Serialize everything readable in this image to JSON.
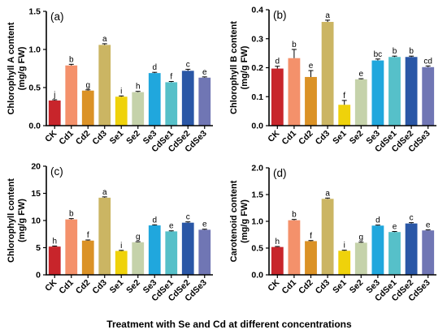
{
  "figure": {
    "xlabel": "Treatment with Se and Cd at different concentrations"
  },
  "colors": [
    "#c8252b",
    "#f4916b",
    "#db9226",
    "#cbb563",
    "#efd20b",
    "#c5d2aa",
    "#20a7dd",
    "#56c0c9",
    "#2a57a6",
    "#7076b4"
  ],
  "chart_data": [
    {
      "type": "bar",
      "panel": "(a)",
      "ylabel": [
        "Chlorophyll A content",
        "(mg/g FW)"
      ],
      "categories": [
        "CK",
        "Cd1",
        "Cd2",
        "Cd3",
        "Se1",
        "Se2",
        "Se3",
        "CdSe1",
        "CdSe2",
        "CdSe3"
      ],
      "values": [
        0.33,
        0.79,
        0.46,
        1.06,
        0.38,
        0.44,
        0.69,
        0.57,
        0.72,
        0.63
      ],
      "errors": [
        0.01,
        0.015,
        0.01,
        0.015,
        0.01,
        0.01,
        0.01,
        0.01,
        0.02,
        0.01
      ],
      "letters": [
        "j",
        "b",
        "g",
        "a",
        "i",
        "h",
        "d",
        "f",
        "c",
        "e"
      ],
      "ylim": [
        0,
        1.5
      ],
      "yticks": [
        "0.0",
        "0.5",
        "1.0",
        "1.5"
      ],
      "grid": false
    },
    {
      "type": "bar",
      "panel": "(b)",
      "ylabel": [
        "Chlorophyll B content",
        "(mg/g FW)"
      ],
      "categories": [
        "CK",
        "Cd1",
        "Cd2",
        "Cd3",
        "Se1",
        "Se2",
        "Se3",
        "CdSe1",
        "CdSe2",
        "CdSe3"
      ],
      "values": [
        0.197,
        0.233,
        0.168,
        0.358,
        0.072,
        0.16,
        0.225,
        0.237,
        0.237,
        0.202
      ],
      "errors": [
        0.008,
        0.03,
        0.022,
        0.006,
        0.015,
        0.002,
        0.005,
        0.003,
        0.003,
        0.004
      ],
      "letters": [
        "d",
        "b",
        "e",
        "a",
        "f",
        "e",
        "bc",
        "b",
        "b",
        "cd"
      ],
      "ylim": [
        0,
        0.4
      ],
      "yticks": [
        "0.0",
        "0.1",
        "0.2",
        "0.3",
        "0.4"
      ],
      "grid": false
    },
    {
      "type": "bar",
      "panel": "(c)",
      "ylabel": [
        "Chlorophyll content",
        "(mg/g FW)"
      ],
      "categories": [
        "CK",
        "Cd1",
        "Cd2",
        "Cd3",
        "Se1",
        "Se2",
        "Se3",
        "CdSe1",
        "CdSe2",
        "CdSe3"
      ],
      "values": [
        5.2,
        10.2,
        6.3,
        14.2,
        4.4,
        6.0,
        9.1,
        8.0,
        9.6,
        8.3
      ],
      "errors": [
        0.1,
        0.15,
        0.12,
        0.15,
        0.1,
        0.1,
        0.1,
        0.1,
        0.15,
        0.1
      ],
      "letters": [
        "h",
        "b",
        "f",
        "a",
        "i",
        "g",
        "d",
        "e",
        "c",
        "e"
      ],
      "ylim": [
        0,
        20
      ],
      "yticks": [
        "0",
        "5",
        "10",
        "15",
        "20"
      ],
      "grid": false
    },
    {
      "type": "bar",
      "panel": "(d)",
      "ylabel": [
        "Carotenoid content",
        "(mg/g FW)"
      ],
      "categories": [
        "CK",
        "Cd1",
        "Cd2",
        "Cd3",
        "Se1",
        "Se2",
        "Se3",
        "CdSe1",
        "CdSe2",
        "CdSe3"
      ],
      "values": [
        0.52,
        1.02,
        0.63,
        1.42,
        0.45,
        0.6,
        0.92,
        0.8,
        0.96,
        0.83
      ],
      "errors": [
        0.01,
        0.015,
        0.01,
        0.015,
        0.01,
        0.01,
        0.01,
        0.01,
        0.015,
        0.01
      ],
      "letters": [
        "h",
        "b",
        "f",
        "a",
        "i",
        "g",
        "d",
        "e",
        "c",
        "e"
      ],
      "ylim": [
        0,
        2.0
      ],
      "yticks": [
        "0.0",
        "0.5",
        "1.0",
        "1.5",
        "2.0"
      ],
      "grid": false
    }
  ]
}
